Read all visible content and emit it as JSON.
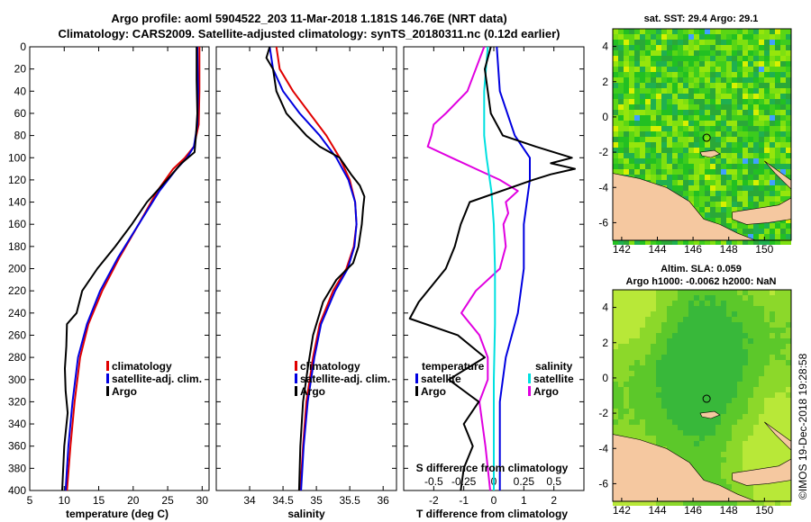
{
  "header": {
    "line1": "Argo profile: aoml 5904522_203 11-Mar-2018 1.181S 146.76E (NRT data)",
    "line2": "Climatology: CARS2009. Satellite-adjusted climatology: synTS_20180311.nc (0.12d earlier)"
  },
  "colors": {
    "climatology": "#e00000",
    "satellite": "#0000e0",
    "argo": "#000000",
    "temp_diff": "#0000e0",
    "sal_diff_sat": "#00e0e0",
    "sal_diff_argo": "#e000e0",
    "land": "#f5c8a0"
  },
  "chart_data": [
    {
      "id": "temperature",
      "type": "line",
      "xlabel": "temperature (deg C)",
      "ylabel": "depth",
      "xlim": [
        5,
        31
      ],
      "ylim": [
        400,
        0
      ],
      "x_ticks": [
        "5",
        "10",
        "15",
        "20",
        "25",
        "30"
      ],
      "y_ticks": [
        "0",
        "20",
        "40",
        "60",
        "80",
        "100",
        "120",
        "140",
        "160",
        "180",
        "200",
        "220",
        "240",
        "260",
        "280",
        "300",
        "320",
        "340",
        "360",
        "380",
        "400"
      ],
      "legend": [
        "climatology",
        "satellite-adj. clim.",
        "Argo"
      ],
      "series": [
        {
          "name": "climatology",
          "depth": [
            0,
            40,
            70,
            90,
            100,
            110,
            130,
            160,
            190,
            220,
            250,
            280,
            320,
            360,
            400
          ],
          "values": [
            29.6,
            29.6,
            29.5,
            28.8,
            27.5,
            25.8,
            23.5,
            20.8,
            18.0,
            15.5,
            13.5,
            12.3,
            11.5,
            10.9,
            10.4
          ]
        },
        {
          "name": "satellite-adj. clim.",
          "depth": [
            0,
            40,
            70,
            90,
            100,
            110,
            130,
            160,
            190,
            220,
            250,
            280,
            320,
            360,
            400
          ],
          "values": [
            29.3,
            29.4,
            29.3,
            28.8,
            27.8,
            26.3,
            23.8,
            20.8,
            17.8,
            15.2,
            13.3,
            12.0,
            11.2,
            10.6,
            10.2
          ]
        },
        {
          "name": "Argo",
          "depth": [
            0,
            30,
            60,
            80,
            95,
            105,
            120,
            140,
            160,
            180,
            200,
            220,
            240,
            250,
            270,
            290,
            310,
            330,
            360,
            400
          ],
          "values": [
            29.2,
            29.2,
            29.3,
            29.1,
            28.9,
            27.0,
            24.9,
            22.0,
            19.8,
            17.4,
            14.8,
            12.6,
            11.8,
            10.4,
            10.3,
            10.1,
            10.2,
            10.5,
            10.0,
            9.7
          ]
        }
      ]
    },
    {
      "id": "salinity",
      "type": "line",
      "xlabel": "salinity",
      "ylabel": "depth",
      "xlim": [
        33.5,
        36.2
      ],
      "ylim": [
        400,
        0
      ],
      "x_ticks": [
        "34",
        "34.5",
        "35",
        "35.5",
        "36"
      ],
      "legend": [
        "climatology",
        "satellite-adj. clim.",
        "Argo"
      ],
      "series": [
        {
          "name": "climatology",
          "depth": [
            0,
            20,
            40,
            60,
            80,
            100,
            120,
            140,
            160,
            180,
            200,
            220,
            250,
            280,
            320,
            360,
            400
          ],
          "values": [
            34.4,
            34.45,
            34.65,
            34.9,
            35.15,
            35.35,
            35.5,
            35.58,
            35.6,
            35.56,
            35.45,
            35.25,
            35.05,
            34.95,
            34.85,
            34.8,
            34.76
          ]
        },
        {
          "name": "satellite-adj. clim.",
          "depth": [
            0,
            20,
            40,
            60,
            80,
            100,
            120,
            140,
            160,
            180,
            200,
            220,
            250,
            280,
            320,
            360,
            400
          ],
          "values": [
            34.3,
            34.35,
            34.5,
            34.75,
            35.05,
            35.3,
            35.48,
            35.58,
            35.6,
            35.57,
            35.47,
            35.28,
            35.07,
            34.97,
            34.87,
            34.81,
            34.77
          ]
        },
        {
          "name": "Argo",
          "depth": [
            0,
            10,
            20,
            40,
            60,
            80,
            90,
            100,
            115,
            125,
            135,
            145,
            160,
            180,
            195,
            210,
            230,
            260,
            290,
            320,
            360,
            400
          ],
          "values": [
            34.3,
            34.25,
            34.35,
            34.4,
            34.55,
            34.85,
            35.05,
            35.35,
            35.52,
            35.65,
            35.72,
            35.7,
            35.68,
            35.63,
            35.55,
            35.3,
            35.1,
            34.95,
            34.87,
            34.8,
            34.76,
            34.74
          ]
        }
      ]
    },
    {
      "id": "difference",
      "type": "line",
      "xlabel": "T difference from climatology",
      "x2label": "S difference from climatology",
      "xlim": [
        -3,
        3
      ],
      "x2lim": [
        -0.75,
        0.75
      ],
      "ylim": [
        400,
        0
      ],
      "x_ticks": [
        "-2",
        "-1",
        "0",
        "1",
        "2"
      ],
      "x2_ticks": [
        "-0.5",
        "-0.25",
        "0",
        "0.25",
        "0.5"
      ],
      "legend_titles": [
        "temperature",
        "salinity"
      ],
      "legend": [
        "satellite",
        "Argo",
        "satellite",
        "Argo"
      ],
      "series": [
        {
          "name": "temperature satellite",
          "depth": [
            0,
            40,
            80,
            100,
            120,
            160,
            200,
            240,
            280,
            320,
            360,
            400
          ],
          "values": [
            0.1,
            0.2,
            0.7,
            1.2,
            1.2,
            1.0,
            1.0,
            0.8,
            0.4,
            0.2,
            0.2,
            0.2
          ]
        },
        {
          "name": "temperature Argo",
          "depth": [
            0,
            20,
            40,
            60,
            80,
            90,
            100,
            105,
            110,
            115,
            120,
            140,
            160,
            180,
            200,
            230,
            245,
            260,
            280,
            300,
            320,
            340,
            360,
            380,
            400
          ],
          "values": [
            -0.1,
            -0.3,
            -0.2,
            -0.1,
            0.3,
            1.4,
            2.6,
            1.9,
            2.7,
            1.9,
            1.3,
            -0.8,
            -1.1,
            -1.3,
            -1.6,
            -2.5,
            -2.8,
            -1.2,
            -0.3,
            -1.5,
            -0.5,
            -1.0,
            -0.7,
            -1.0,
            -1.1
          ]
        },
        {
          "name": "salinity satellite",
          "depth": [
            0,
            40,
            80,
            100,
            130,
            160,
            200,
            250,
            300,
            350,
            400
          ],
          "values": [
            -0.05,
            -0.08,
            -0.08,
            -0.06,
            -0.02,
            0.0,
            0.01,
            0.01,
            0.0,
            0.0,
            0.0
          ]
        },
        {
          "name": "salinity Argo",
          "depth": [
            0,
            20,
            40,
            60,
            70,
            80,
            90,
            100,
            110,
            120,
            130,
            140,
            150,
            160,
            180,
            200,
            220,
            240,
            260,
            280,
            300,
            320,
            360,
            400
          ],
          "values": [
            -0.08,
            -0.15,
            -0.22,
            -0.4,
            -0.5,
            -0.52,
            -0.55,
            -0.35,
            -0.15,
            0.05,
            0.2,
            0.1,
            0.12,
            0.08,
            0.1,
            0.05,
            -0.15,
            -0.27,
            -0.12,
            -0.05,
            -0.05,
            -0.12,
            -0.07,
            -0.03
          ]
        }
      ]
    },
    {
      "id": "sst_map",
      "type": "heatmap",
      "title": "sat. SST: 29.4 Argo: 29.1",
      "xlim": [
        141.5,
        151.5
      ],
      "ylim": [
        -7,
        5
      ],
      "x_ticks": [
        "142",
        "144",
        "146",
        "148",
        "150"
      ],
      "y_ticks": [
        "4",
        "2",
        "0",
        "-2",
        "-4",
        "-6"
      ],
      "marker": {
        "lon": 146.76,
        "lat": -1.181
      }
    },
    {
      "id": "sla_map",
      "type": "heatmap",
      "title1": "Altim. SLA: 0.059",
      "title2": "Argo h1000: -0.0062 h2000: NaN",
      "xlim": [
        141.5,
        151.5
      ],
      "ylim": [
        -7,
        5
      ],
      "x_ticks": [
        "142",
        "144",
        "146",
        "148",
        "150"
      ],
      "y_ticks": [
        "4",
        "2",
        "0",
        "-2",
        "-4",
        "-6"
      ],
      "marker": {
        "lon": 146.76,
        "lat": -1.181
      }
    }
  ],
  "footer": {
    "credit": "©IMOS 19-Dec-2018 19:28:58"
  }
}
